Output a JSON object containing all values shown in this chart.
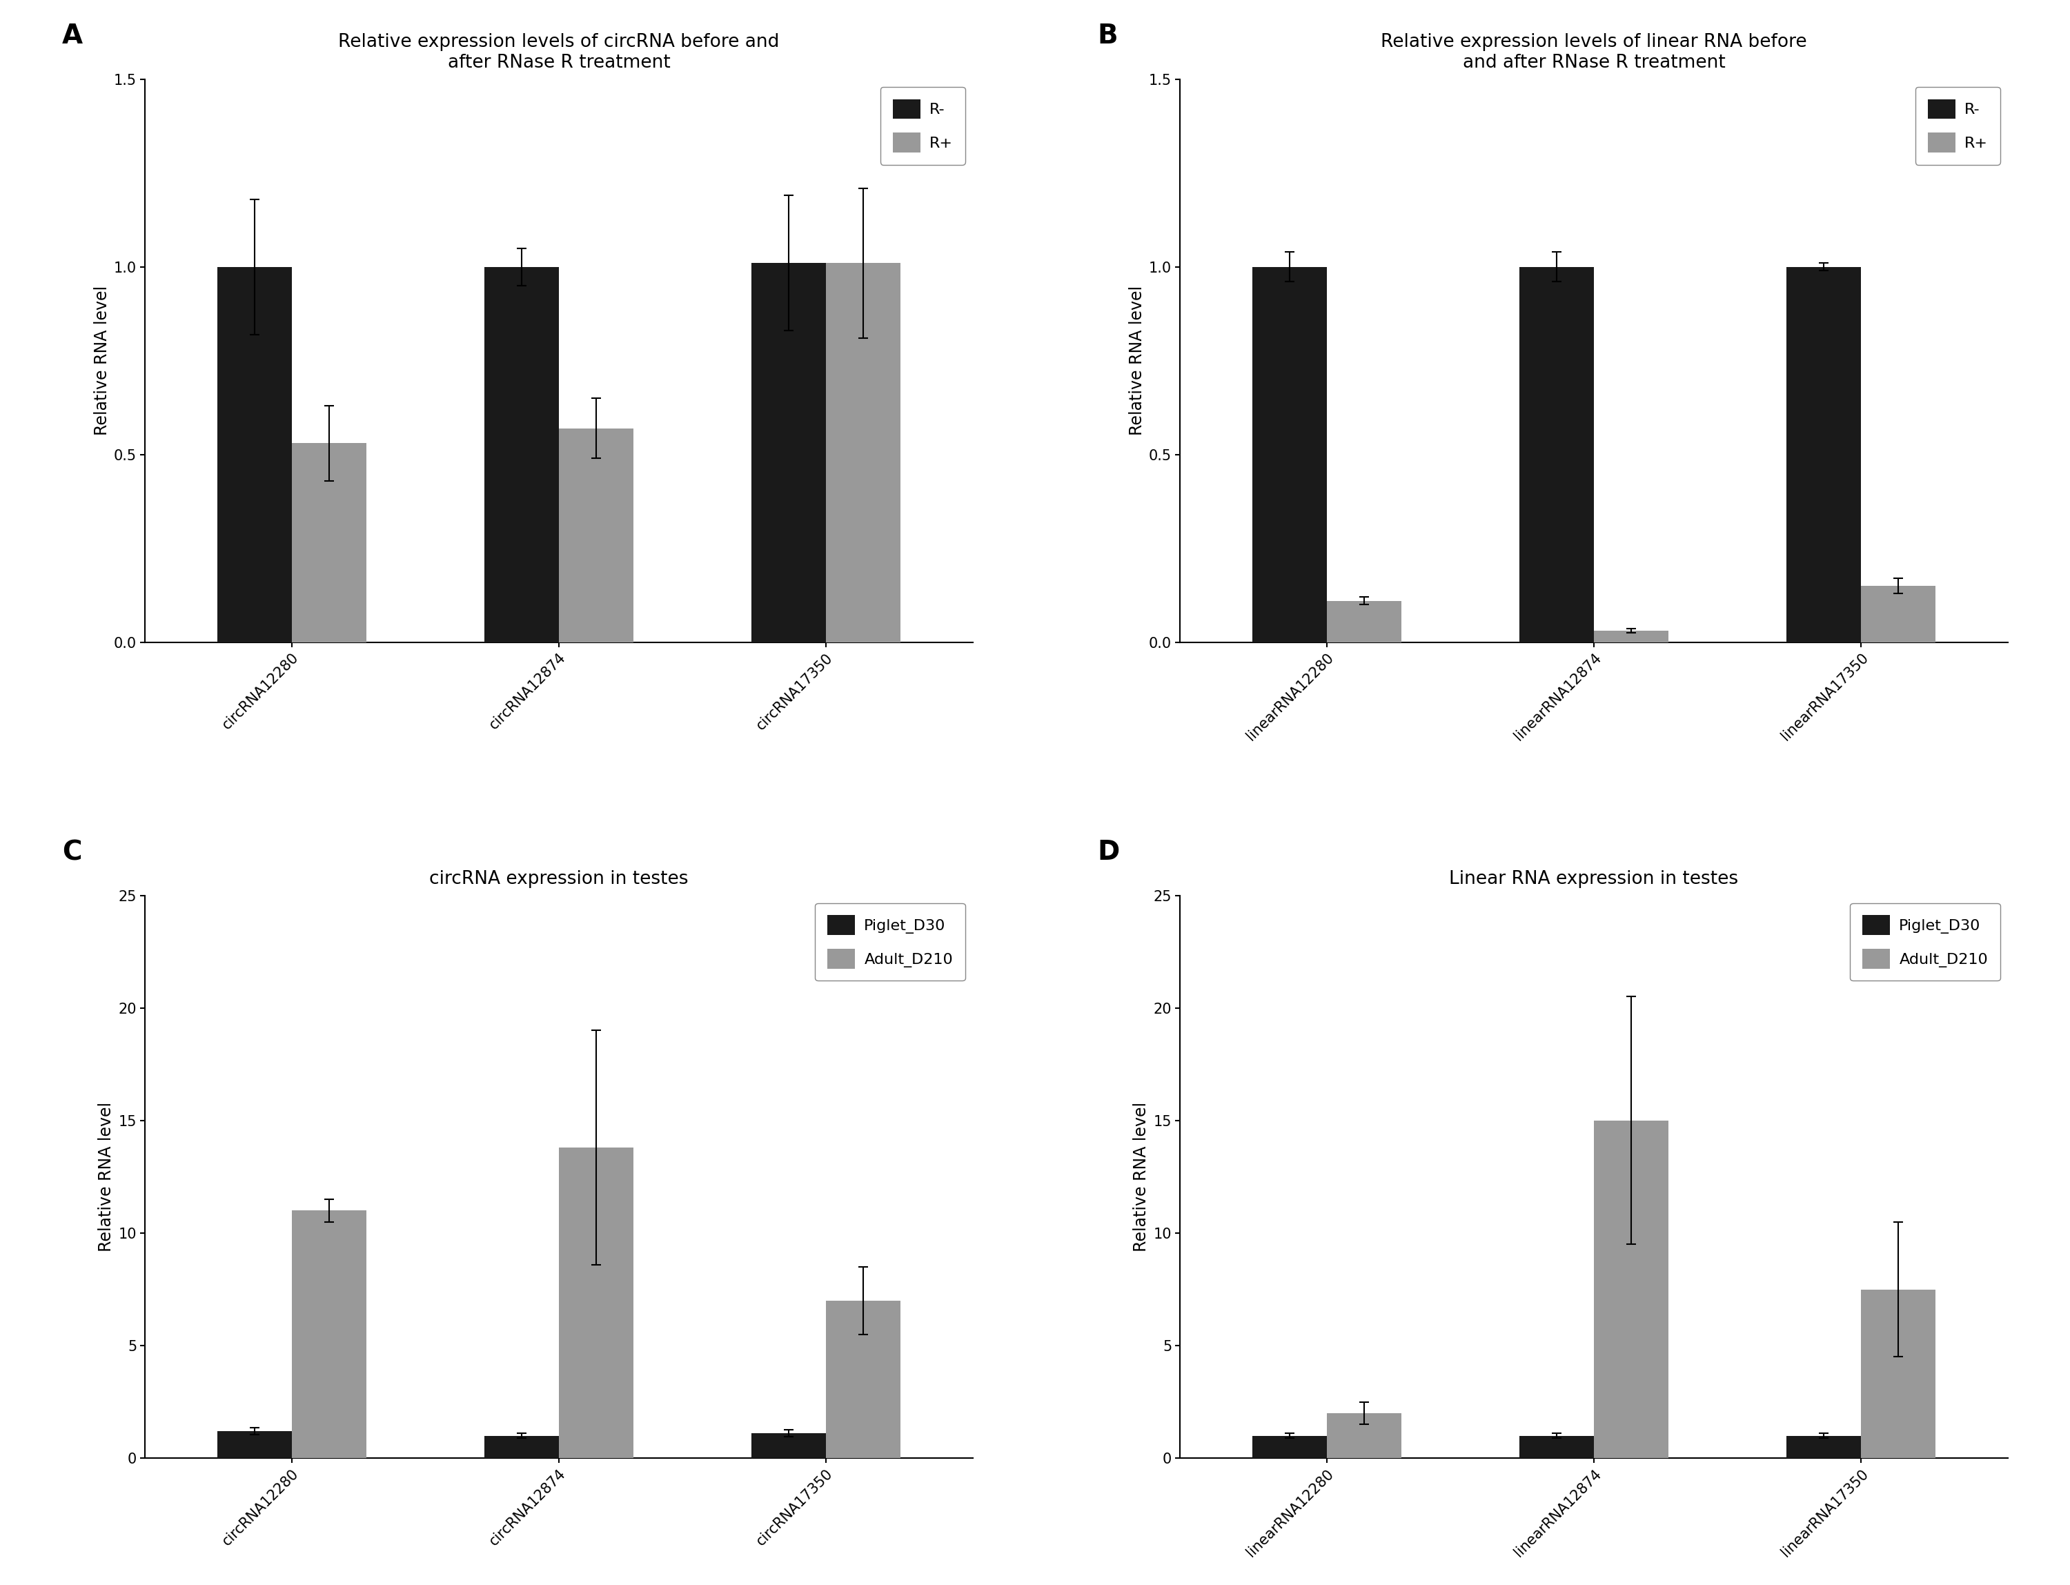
{
  "panel_A": {
    "title": "Relative expression levels of circRNA before and\nafter RNase R treatment",
    "categories": [
      "circRNA12280",
      "circRNA12874",
      "circRNA17350"
    ],
    "series": [
      {
        "name": "R-",
        "values": [
          1.0,
          1.0,
          1.01
        ],
        "errors": [
          0.18,
          0.05,
          0.18
        ],
        "color": "#1a1a1a"
      },
      {
        "name": "R+",
        "values": [
          0.53,
          0.57,
          1.01
        ],
        "errors": [
          0.1,
          0.08,
          0.2
        ],
        "color": "#999999"
      }
    ],
    "ylabel": "Relative RNA level",
    "ylim": [
      0,
      1.5
    ],
    "yticks": [
      0.0,
      0.5,
      1.0,
      1.5
    ],
    "ytick_labels": [
      "0.0",
      "0.5",
      "1.0",
      "1.5"
    ],
    "panel_label": "A"
  },
  "panel_B": {
    "title": "Relative expression levels of linear RNA before\nand after RNase R treatment",
    "categories": [
      "linearRNA12280",
      "linearRNA12874",
      "linearRNA17350"
    ],
    "series": [
      {
        "name": "R-",
        "values": [
          1.0,
          1.0,
          1.0
        ],
        "errors": [
          0.04,
          0.04,
          0.01
        ],
        "color": "#1a1a1a"
      },
      {
        "name": "R+",
        "values": [
          0.11,
          0.03,
          0.15
        ],
        "errors": [
          0.01,
          0.005,
          0.02
        ],
        "color": "#999999"
      }
    ],
    "ylabel": "Relative RNA level",
    "ylim": [
      0,
      1.5
    ],
    "yticks": [
      0.0,
      0.5,
      1.0,
      1.5
    ],
    "ytick_labels": [
      "0.0",
      "0.5",
      "1.0",
      "1.5"
    ],
    "panel_label": "B"
  },
  "panel_C": {
    "title": "circRNA expression in testes",
    "categories": [
      "circRNA12280",
      "circRNA12874",
      "circRNA17350"
    ],
    "series": [
      {
        "name": "Piglet_D30",
        "values": [
          1.2,
          1.0,
          1.1
        ],
        "errors": [
          0.15,
          0.1,
          0.15
        ],
        "color": "#1a1a1a"
      },
      {
        "name": "Adult_D210",
        "values": [
          11.0,
          13.8,
          7.0
        ],
        "errors": [
          0.5,
          5.2,
          1.5
        ],
        "color": "#999999"
      }
    ],
    "ylabel": "Relative RNA level",
    "ylim": [
      0,
      25
    ],
    "yticks": [
      0,
      5,
      10,
      15,
      20,
      25
    ],
    "ytick_labels": [
      "0",
      "5",
      "10",
      "15",
      "20",
      "25"
    ],
    "panel_label": "C"
  },
  "panel_D": {
    "title": "Linear RNA expression in testes",
    "categories": [
      "linearRNA12280",
      "linearRNA12874",
      "linearRNA17350"
    ],
    "series": [
      {
        "name": "Piglet_D30",
        "values": [
          1.0,
          1.0,
          1.0
        ],
        "errors": [
          0.1,
          0.1,
          0.1
        ],
        "color": "#1a1a1a"
      },
      {
        "name": "Adult_D210",
        "values": [
          2.0,
          15.0,
          7.5
        ],
        "errors": [
          0.5,
          5.5,
          3.0
        ],
        "color": "#999999"
      }
    ],
    "ylabel": "Relative RNA level",
    "ylim": [
      0,
      25
    ],
    "yticks": [
      0,
      5,
      10,
      15,
      20,
      25
    ],
    "ytick_labels": [
      "0",
      "5",
      "10",
      "15",
      "20",
      "25"
    ],
    "panel_label": "D"
  },
  "background_color": "#ffffff",
  "bar_width": 0.28,
  "title_fontsize": 19,
  "label_fontsize": 17,
  "tick_fontsize": 15,
  "legend_fontsize": 16,
  "panel_label_fontsize": 28
}
